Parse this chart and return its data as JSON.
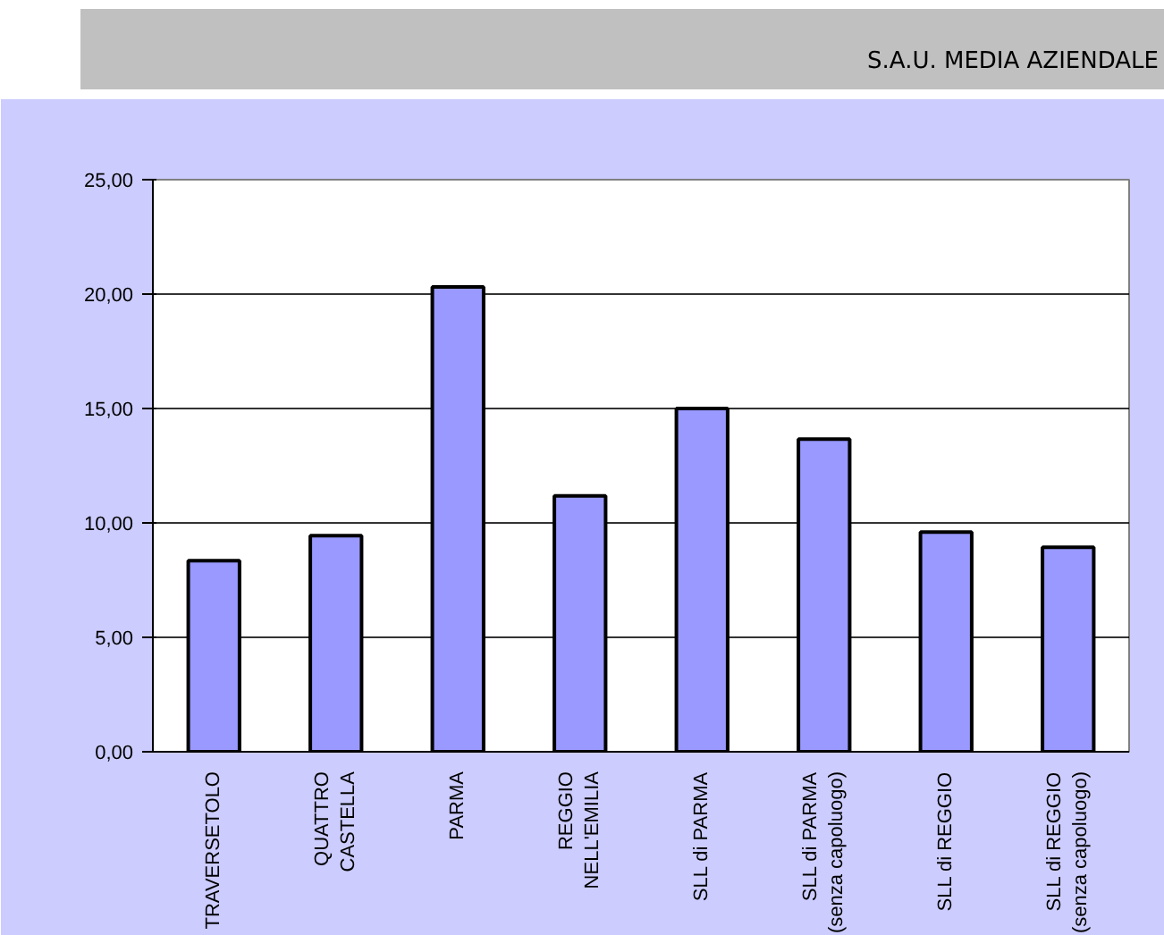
{
  "chart_data": {
    "type": "bar",
    "title": "S.A.U. MEDIA AZIENDALE",
    "categories": [
      "TRAVERSETOLO",
      "QUATTRO\nCASTELLA",
      "PARMA",
      "REGGIO\nNELL'EMILIA",
      "SLL di PARMA",
      "SLL di PARMA\n(senza capoluogo)",
      "SLL di REGGIO",
      "SLL di REGGIO\n(senza capoluogo)"
    ],
    "values": [
      8.35,
      9.44,
      20.31,
      11.18,
      15.0,
      13.66,
      9.6,
      8.94
    ],
    "color": "#9999ff",
    "ylim": [
      0,
      25
    ],
    "yticks": [
      {
        "value": 0,
        "label": "0,00"
      },
      {
        "value": 5,
        "label": "5,00"
      },
      {
        "value": 10,
        "label": "10,00"
      },
      {
        "value": 15,
        "label": "15,00"
      },
      {
        "value": 20,
        "label": "20,00"
      },
      {
        "value": 25,
        "label": "25,00"
      }
    ],
    "grid": "y"
  }
}
